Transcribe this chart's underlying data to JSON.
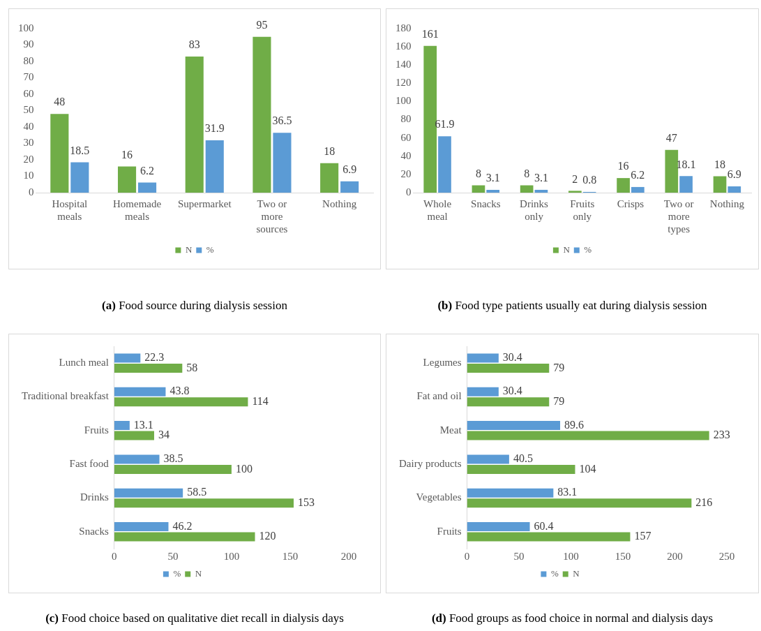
{
  "chart_data": [
    {
      "type": "bar",
      "title": "(a) Food source during dialysis session",
      "categories": [
        "Hospital meals",
        "Homemade meals",
        "Supermarket",
        "Two or more sources",
        "Nothing"
      ],
      "series": [
        {
          "name": "N",
          "color": "#70ad47",
          "values": [
            48,
            16,
            83,
            95,
            18
          ]
        },
        {
          "name": "%",
          "color": "#5b9bd5",
          "values": [
            18.5,
            6.2,
            31.9,
            36.5,
            6.9
          ]
        }
      ],
      "ylim": [
        0,
        100
      ],
      "yticks": [
        0,
        10,
        20,
        30,
        40,
        50,
        60,
        70,
        80,
        90,
        100
      ],
      "data_labels": true,
      "legend": "bottom",
      "grid": false
    },
    {
      "type": "bar",
      "title": "(b) Food type patients usually eat during dialysis session",
      "categories": [
        "Whole meal",
        "Snacks",
        "Drinks only",
        "Fruits only",
        "Crisps",
        "Two or more types",
        "Nothing"
      ],
      "series": [
        {
          "name": "N",
          "color": "#70ad47",
          "values": [
            161,
            8,
            8,
            2,
            16,
            47,
            18
          ]
        },
        {
          "name": "%",
          "color": "#5b9bd5",
          "values": [
            61.9,
            3.1,
            3.1,
            0.8,
            6.2,
            18.1,
            6.9
          ]
        }
      ],
      "ylim": [
        0,
        180
      ],
      "yticks": [
        0,
        20,
        40,
        60,
        80,
        100,
        120,
        140,
        160,
        180
      ],
      "data_labels": true,
      "legend": "bottom",
      "grid": false
    },
    {
      "type": "bar",
      "orientation": "horizontal",
      "title": "(c) Food choice based on qualitative diet recall in dialysis days",
      "categories": [
        "Lunch meal",
        "Traditional breakfast",
        "Fruits",
        "Fast food",
        "Drinks",
        "Snacks"
      ],
      "series": [
        {
          "name": "%",
          "color": "#5b9bd5",
          "values": [
            22.3,
            43.8,
            13.1,
            38.5,
            58.5,
            46.2
          ]
        },
        {
          "name": "N",
          "color": "#70ad47",
          "values": [
            58,
            114,
            34,
            100,
            153,
            120
          ]
        }
      ],
      "xlim": [
        0,
        200
      ],
      "xticks": [
        0,
        50,
        100,
        150,
        200
      ],
      "data_labels": true,
      "legend": "bottom",
      "grid": false
    },
    {
      "type": "bar",
      "orientation": "horizontal",
      "title": "(d) Food groups as food choice in normal and dialysis days",
      "categories": [
        "Legumes",
        "Fat and oil",
        "Meat",
        "Dairy products",
        "Vegetables",
        "Fruits"
      ],
      "series": [
        {
          "name": "%",
          "color": "#5b9bd5",
          "values": [
            30.4,
            30.4,
            89.6,
            40.5,
            83.1,
            60.4
          ]
        },
        {
          "name": "N",
          "color": "#70ad47",
          "values": [
            79,
            79,
            233,
            104,
            216,
            157
          ]
        }
      ],
      "xlim": [
        0,
        250
      ],
      "xticks": [
        0,
        50,
        100,
        150,
        200,
        250
      ],
      "data_labels": true,
      "legend": "bottom",
      "grid": false
    }
  ]
}
